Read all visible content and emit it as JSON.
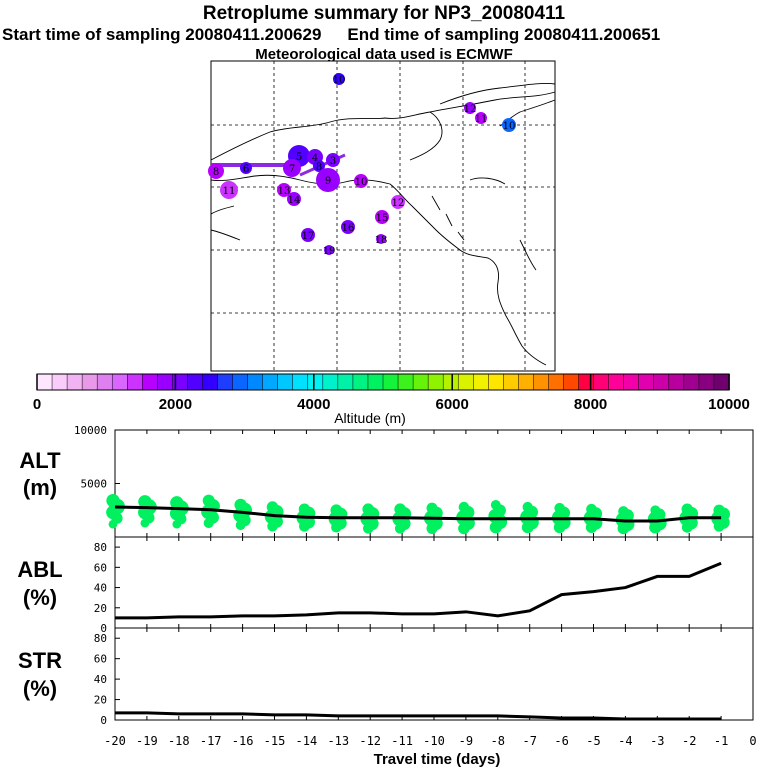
{
  "header": {
    "title": "Retroplume summary for NP3_20080411",
    "start_label": "Start time of sampling 20080411.200629",
    "end_label": "End time of sampling 20080411.200651",
    "met_label": "Meteorological data used is ECMWF"
  },
  "map": {
    "markers": [
      {
        "label": "10",
        "alt": 2400
      },
      {
        "label": "12",
        "alt": 1800
      },
      {
        "label": "11",
        "alt": 1700
      },
      {
        "label": "10",
        "alt": 3000
      },
      {
        "label": "5",
        "alt": 2300
      },
      {
        "label": "4",
        "alt": 2000
      },
      {
        "label": "3",
        "alt": 2100
      },
      {
        "label": "8",
        "alt": 2200
      },
      {
        "label": "6",
        "alt": 2300
      },
      {
        "label": "7",
        "alt": 1800
      },
      {
        "label": "8",
        "alt": 1700
      },
      {
        "label": "9",
        "alt": 1800
      },
      {
        "label": "10",
        "alt": 1600
      },
      {
        "label": "11",
        "alt": 1500
      },
      {
        "label": "12",
        "alt": 1400
      },
      {
        "label": "13",
        "alt": 1700
      },
      {
        "label": "14",
        "alt": 1800
      },
      {
        "label": "15",
        "alt": 1700
      },
      {
        "label": "16",
        "alt": 2000
      },
      {
        "label": "17",
        "alt": 2100
      },
      {
        "label": "18",
        "alt": 1900
      },
      {
        "label": "19",
        "alt": 2000
      }
    ]
  },
  "colorbar": {
    "tick_labels": [
      "0",
      "2000",
      "4000",
      "6000",
      "8000",
      "10000"
    ],
    "title": "Altitude (m)",
    "colors": [
      "#ffe6ff",
      "#f9ccf9",
      "#f1b3f1",
      "#e899e8",
      "#df80f0",
      "#d966ff",
      "#cc33ff",
      "#b800ff",
      "#9900ff",
      "#7a00ff",
      "#5200ff",
      "#3300ff",
      "#1f3dff",
      "#0a66ff",
      "#0088ff",
      "#00a8ff",
      "#00c8ff",
      "#00e0ff",
      "#00f2f2",
      "#00f2cc",
      "#00f2a8",
      "#00f282",
      "#00f260",
      "#14f23c",
      "#3cf21e",
      "#66f20a",
      "#8ef200",
      "#b6f200",
      "#daf200",
      "#f2f200",
      "#ffe600",
      "#ffcc00",
      "#ffb000",
      "#ff9200",
      "#ff7000",
      "#ff4800",
      "#ff0044",
      "#ff0077",
      "#ff0099",
      "#f200a8",
      "#e000b0",
      "#cc00a8",
      "#b8009e",
      "#a00090",
      "#880080",
      "#700070"
    ]
  },
  "chart_data": [
    {
      "type": "line",
      "panel": "ALT",
      "ylabel": "ALT (m)",
      "ylim": [
        0,
        10000
      ],
      "yticks": [
        10000,
        5000
      ],
      "x": [
        -20,
        -19,
        -18,
        -17,
        -16,
        -15,
        -14,
        -13,
        -12,
        -11,
        -10,
        -9,
        -8,
        -7,
        -6,
        -5,
        -4,
        -3,
        -2,
        -1
      ],
      "series": [
        {
          "name": "median altitude",
          "values": [
            2800,
            2750,
            2650,
            2550,
            2300,
            2000,
            1850,
            1800,
            1800,
            1800,
            1750,
            1700,
            1700,
            1700,
            1700,
            1700,
            1500,
            1500,
            1800,
            1800
          ]
        }
      ],
      "scatter_range": {
        "min": [
          1200,
          1300,
          1200,
          1300,
          1100,
          1000,
          1000,
          900,
          800,
          800,
          800,
          800,
          900,
          900,
          900,
          900,
          800,
          900,
          900,
          1000
        ],
        "max": [
          3400,
          3300,
          3200,
          3400,
          3000,
          2800,
          2600,
          2500,
          2600,
          2600,
          2700,
          2800,
          3000,
          2800,
          2700,
          2600,
          2400,
          2500,
          2600,
          2500
        ]
      }
    },
    {
      "type": "line",
      "panel": "ABL",
      "ylabel": "ABL (%)",
      "ylim": [
        0,
        90
      ],
      "yticks": [
        0,
        20,
        40,
        60,
        80
      ],
      "x": [
        -20,
        -19,
        -18,
        -17,
        -16,
        -15,
        -14,
        -13,
        -12,
        -11,
        -10,
        -9,
        -8,
        -7,
        -6,
        -5,
        -4,
        -3,
        -2,
        -1
      ],
      "series": [
        {
          "name": "ABL fraction",
          "values": [
            10,
            10,
            11,
            11,
            12,
            12,
            13,
            15,
            15,
            14,
            14,
            16,
            12,
            17,
            33,
            36,
            40,
            51,
            51,
            64
          ]
        }
      ]
    },
    {
      "type": "line",
      "panel": "STR",
      "ylabel": "STR (%)",
      "ylim": [
        0,
        90
      ],
      "yticks": [
        0,
        20,
        40,
        60,
        80
      ],
      "xlabel": "Travel time (days)",
      "xlim": [
        -20,
        0
      ],
      "xticks": [
        -20,
        -19,
        -18,
        -17,
        -16,
        -15,
        -14,
        -13,
        -12,
        -11,
        -10,
        -9,
        -8,
        -7,
        -6,
        -5,
        -4,
        -3,
        -2,
        -1,
        0
      ],
      "x": [
        -20,
        -19,
        -18,
        -17,
        -16,
        -15,
        -14,
        -13,
        -12,
        -11,
        -10,
        -9,
        -8,
        -7,
        -6,
        -5,
        -4,
        -3,
        -2,
        -1
      ],
      "series": [
        {
          "name": "stratospheric fraction",
          "values": [
            7,
            7,
            6,
            6,
            6,
            5,
            5,
            4,
            4,
            4,
            4,
            4,
            4,
            3,
            2,
            2,
            1,
            1,
            1,
            1
          ]
        }
      ]
    }
  ]
}
